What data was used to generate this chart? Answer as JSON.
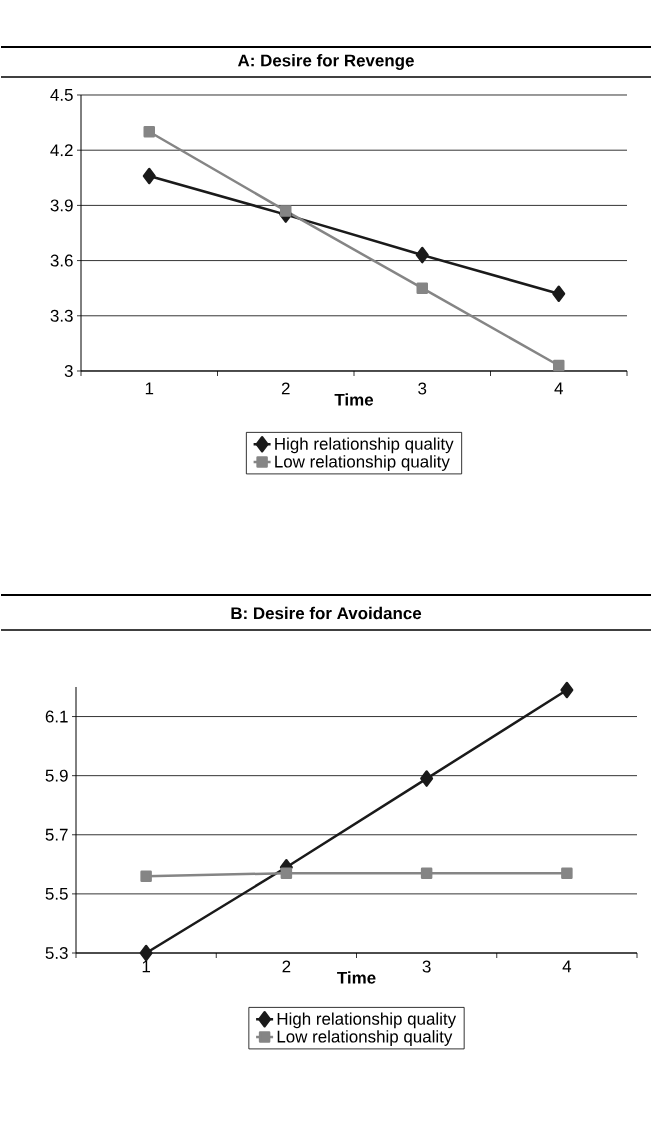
{
  "chart_data": [
    {
      "type": "line",
      "title": "A: Desire for Revenge",
      "xlabel": "Time",
      "categories": [
        "1",
        "2",
        "3",
        "4"
      ],
      "series": [
        {
          "name": "High relationship quality",
          "color": "#1a1a1a",
          "marker": "diamond",
          "values": [
            4.06,
            3.85,
            3.63,
            3.42
          ]
        },
        {
          "name": "Low relationship quality",
          "color": "#858585",
          "marker": "square",
          "values": [
            4.3,
            3.87,
            3.45,
            3.03
          ]
        }
      ],
      "ylim": [
        3,
        4.5
      ],
      "yticks": [
        3,
        3.3,
        3.6,
        3.9,
        4.2,
        4.5
      ],
      "grid": "y",
      "legend": "bottom",
      "line_style": "solid"
    },
    {
      "type": "line",
      "title": "B: Desire for Avoidance",
      "xlabel": "Time",
      "categories": [
        "1",
        "2",
        "3",
        "4"
      ],
      "series": [
        {
          "name": "High relationship quality",
          "color": "#1a1a1a",
          "marker": "diamond",
          "values": [
            5.3,
            5.59,
            5.89,
            6.19
          ]
        },
        {
          "name": "Low relationship quality",
          "color": "#858585",
          "marker": "square",
          "values": [
            5.56,
            5.57,
            5.57,
            5.57
          ]
        }
      ],
      "ylim": [
        5.3,
        6.2
      ],
      "yticks": [
        5.3,
        5.5,
        5.7,
        5.9,
        6.1
      ],
      "grid": "y",
      "legend": "bottom",
      "line_style": "solid"
    }
  ]
}
